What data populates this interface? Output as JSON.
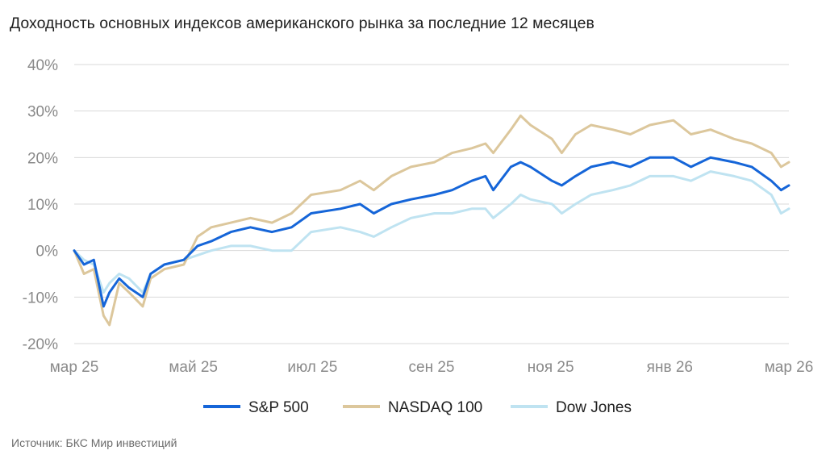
{
  "title": "Доходность основных индексов американского рынка за последние 12 месяцев",
  "source": "Источник: БКС Мир инвестиций",
  "chart_data": {
    "type": "line",
    "title": "Доходность основных индексов американского рынка за последние 12 месяцев",
    "xlabel": "",
    "ylabel": "",
    "x_tick_labels": [
      "мар 25",
      "май 25",
      "июл 25",
      "сен 25",
      "ноя 25",
      "янв 26",
      "мар 26"
    ],
    "y_tick_labels": [
      "-20%",
      "-10%",
      "0%",
      "10%",
      "20%",
      "30%",
      "40%"
    ],
    "y_ticks": [
      -20,
      -10,
      0,
      10,
      20,
      30,
      40
    ],
    "ylim": [
      -20,
      40
    ],
    "xlim": [
      "2025-03-01",
      "2026-03-01"
    ],
    "grid": "horizontal",
    "legend_position": "bottom",
    "series": [
      {
        "name": "S&P 500",
        "color": "#1565d8",
        "points": [
          [
            "2025-03-01",
            0
          ],
          [
            "2025-03-06",
            -3
          ],
          [
            "2025-03-11",
            -2
          ],
          [
            "2025-03-16",
            -12
          ],
          [
            "2025-03-19",
            -9
          ],
          [
            "2025-03-24",
            -6
          ],
          [
            "2025-03-29",
            -8
          ],
          [
            "2025-04-05",
            -10
          ],
          [
            "2025-04-09",
            -5
          ],
          [
            "2025-04-16",
            -3
          ],
          [
            "2025-04-26",
            -2
          ],
          [
            "2025-05-03",
            1
          ],
          [
            "2025-05-10",
            2
          ],
          [
            "2025-05-20",
            4
          ],
          [
            "2025-05-30",
            5
          ],
          [
            "2025-06-10",
            4
          ],
          [
            "2025-06-20",
            5
          ],
          [
            "2025-06-30",
            8
          ],
          [
            "2025-07-15",
            9
          ],
          [
            "2025-07-25",
            10
          ],
          [
            "2025-08-01",
            8
          ],
          [
            "2025-08-10",
            10
          ],
          [
            "2025-08-20",
            11
          ],
          [
            "2025-09-01",
            12
          ],
          [
            "2025-09-10",
            13
          ],
          [
            "2025-09-20",
            15
          ],
          [
            "2025-09-27",
            16
          ],
          [
            "2025-10-01",
            13
          ],
          [
            "2025-10-10",
            18
          ],
          [
            "2025-10-15",
            19
          ],
          [
            "2025-10-20",
            18
          ],
          [
            "2025-10-31",
            15
          ],
          [
            "2025-11-05",
            14
          ],
          [
            "2025-11-12",
            16
          ],
          [
            "2025-11-20",
            18
          ],
          [
            "2025-12-01",
            19
          ],
          [
            "2025-12-10",
            18
          ],
          [
            "2025-12-20",
            20
          ],
          [
            "2026-01-01",
            20
          ],
          [
            "2026-01-10",
            18
          ],
          [
            "2026-01-20",
            20
          ],
          [
            "2026-02-01",
            19
          ],
          [
            "2026-02-10",
            18
          ],
          [
            "2026-02-20",
            15
          ],
          [
            "2026-02-25",
            13
          ],
          [
            "2026-03-01",
            14
          ]
        ]
      },
      {
        "name": "NASDAQ 100",
        "color": "#dcc79c",
        "points": [
          [
            "2025-03-01",
            0
          ],
          [
            "2025-03-06",
            -5
          ],
          [
            "2025-03-11",
            -4
          ],
          [
            "2025-03-16",
            -14
          ],
          [
            "2025-03-19",
            -16
          ],
          [
            "2025-03-24",
            -7
          ],
          [
            "2025-03-29",
            -9
          ],
          [
            "2025-04-05",
            -12
          ],
          [
            "2025-04-09",
            -6
          ],
          [
            "2025-04-16",
            -4
          ],
          [
            "2025-04-26",
            -3
          ],
          [
            "2025-05-03",
            3
          ],
          [
            "2025-05-10",
            5
          ],
          [
            "2025-05-20",
            6
          ],
          [
            "2025-05-30",
            7
          ],
          [
            "2025-06-10",
            6
          ],
          [
            "2025-06-20",
            8
          ],
          [
            "2025-06-30",
            12
          ],
          [
            "2025-07-15",
            13
          ],
          [
            "2025-07-25",
            15
          ],
          [
            "2025-08-01",
            13
          ],
          [
            "2025-08-10",
            16
          ],
          [
            "2025-08-20",
            18
          ],
          [
            "2025-09-01",
            19
          ],
          [
            "2025-09-10",
            21
          ],
          [
            "2025-09-20",
            22
          ],
          [
            "2025-09-27",
            23
          ],
          [
            "2025-10-01",
            21
          ],
          [
            "2025-10-10",
            26
          ],
          [
            "2025-10-15",
            29
          ],
          [
            "2025-10-20",
            27
          ],
          [
            "2025-10-31",
            24
          ],
          [
            "2025-11-05",
            21
          ],
          [
            "2025-11-12",
            25
          ],
          [
            "2025-11-20",
            27
          ],
          [
            "2025-12-01",
            26
          ],
          [
            "2025-12-10",
            25
          ],
          [
            "2025-12-20",
            27
          ],
          [
            "2026-01-01",
            28
          ],
          [
            "2026-01-10",
            25
          ],
          [
            "2026-01-20",
            26
          ],
          [
            "2026-02-01",
            24
          ],
          [
            "2026-02-10",
            23
          ],
          [
            "2026-02-20",
            21
          ],
          [
            "2026-02-25",
            18
          ],
          [
            "2026-03-01",
            19
          ]
        ]
      },
      {
        "name": "Dow Jones",
        "color": "#bfe3f1",
        "points": [
          [
            "2025-03-01",
            0
          ],
          [
            "2025-03-06",
            -2
          ],
          [
            "2025-03-11",
            -3
          ],
          [
            "2025-03-16",
            -9
          ],
          [
            "2025-03-19",
            -7
          ],
          [
            "2025-03-24",
            -5
          ],
          [
            "2025-03-29",
            -6
          ],
          [
            "2025-04-05",
            -9
          ],
          [
            "2025-04-09",
            -5
          ],
          [
            "2025-04-16",
            -3
          ],
          [
            "2025-04-26",
            -2
          ],
          [
            "2025-05-03",
            -1
          ],
          [
            "2025-05-10",
            0
          ],
          [
            "2025-05-20",
            1
          ],
          [
            "2025-05-30",
            1
          ],
          [
            "2025-06-10",
            0
          ],
          [
            "2025-06-20",
            0
          ],
          [
            "2025-06-30",
            4
          ],
          [
            "2025-07-15",
            5
          ],
          [
            "2025-07-25",
            4
          ],
          [
            "2025-08-01",
            3
          ],
          [
            "2025-08-10",
            5
          ],
          [
            "2025-08-20",
            7
          ],
          [
            "2025-09-01",
            8
          ],
          [
            "2025-09-10",
            8
          ],
          [
            "2025-09-20",
            9
          ],
          [
            "2025-09-27",
            9
          ],
          [
            "2025-10-01",
            7
          ],
          [
            "2025-10-10",
            10
          ],
          [
            "2025-10-15",
            12
          ],
          [
            "2025-10-20",
            11
          ],
          [
            "2025-10-31",
            10
          ],
          [
            "2025-11-05",
            8
          ],
          [
            "2025-11-12",
            10
          ],
          [
            "2025-11-20",
            12
          ],
          [
            "2025-12-01",
            13
          ],
          [
            "2025-12-10",
            14
          ],
          [
            "2025-12-20",
            16
          ],
          [
            "2026-01-01",
            16
          ],
          [
            "2026-01-10",
            15
          ],
          [
            "2026-01-20",
            17
          ],
          [
            "2026-02-01",
            16
          ],
          [
            "2026-02-10",
            15
          ],
          [
            "2026-02-20",
            12
          ],
          [
            "2026-02-25",
            8
          ],
          [
            "2026-03-01",
            9
          ]
        ]
      }
    ]
  }
}
